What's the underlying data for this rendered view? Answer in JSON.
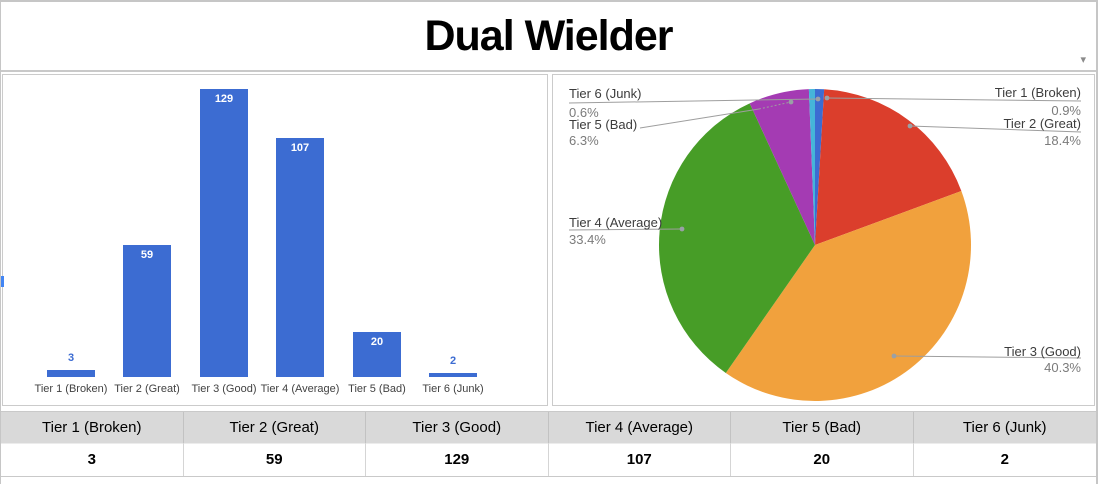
{
  "window": {
    "title": "Dual Wielder",
    "dropdown_icon": "▾"
  },
  "chart_data": [
    {
      "type": "bar",
      "title": "",
      "categories": [
        "Tier 1 (Broken)",
        "Tier 2 (Great)",
        "Tier 3 (Good)",
        "Tier 4 (Average)",
        "Tier 5 (Bad)",
        "Tier 6 (Junk)"
      ],
      "values": [
        3,
        59,
        129,
        107,
        20,
        2
      ],
      "bar_color": "#3C6CD2",
      "value_label_inside_color": "#FFFFFF",
      "value_label_outside_color": "#3C6CD2",
      "axis_label_color": "#424242",
      "gridlines": false,
      "value_axis_shown": false
    },
    {
      "type": "pie",
      "title": "",
      "categories": [
        "Tier 1 (Broken)",
        "Tier 2 (Great)",
        "Tier 3 (Good)",
        "Tier 4 (Average)",
        "Tier 5 (Bad)",
        "Tier 6 (Junk)"
      ],
      "values": [
        3,
        59,
        129,
        107,
        20,
        2
      ],
      "percent_labels": [
        "0.9%",
        "18.4%",
        "40.3%",
        "33.4%",
        "6.3%",
        "0.6%"
      ],
      "colors": [
        "#3C6CD2",
        "#DB3E2C",
        "#F1A13D",
        "#479D27",
        "#A43BB3",
        "#45B5D9"
      ],
      "start_angle": "12-oclock",
      "direction": "clockwise",
      "legend_position": "labeled-callouts",
      "label_color": "#3C3C3C",
      "percent_color": "#7B7B7B",
      "callout_line_color": "#9E9E9E"
    }
  ],
  "table": {
    "headers": [
      "Tier 1 (Broken)",
      "Tier 2 (Great)",
      "Tier 3 (Good)",
      "Tier 4 (Average)",
      "Tier 5 (Bad)",
      "Tier 6 (Junk)"
    ],
    "values": [
      "3",
      "59",
      "129",
      "107",
      "20",
      "2"
    ],
    "header_bg": "#D9D9D9"
  }
}
